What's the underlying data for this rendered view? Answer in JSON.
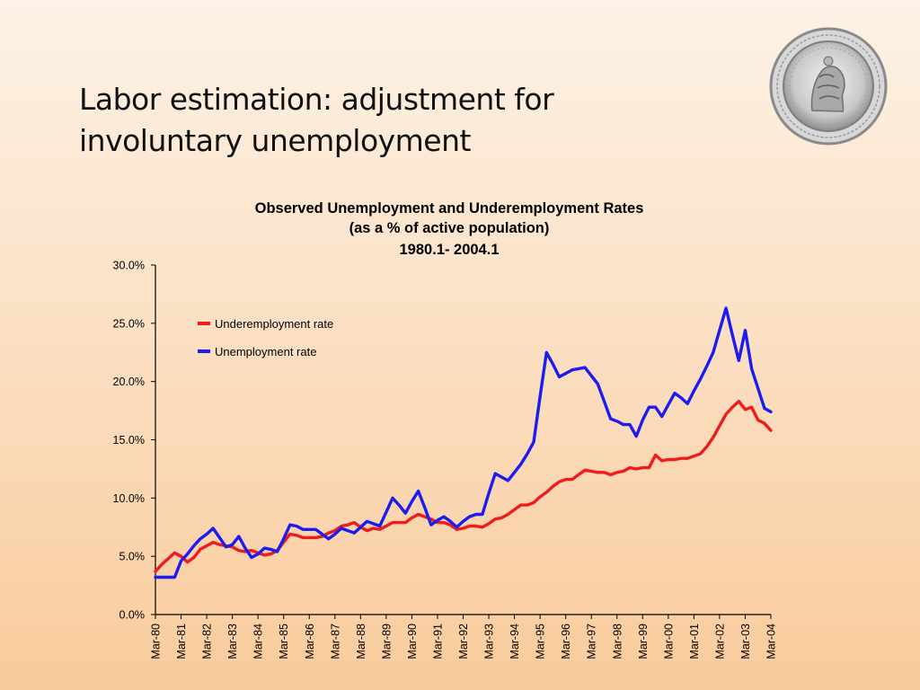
{
  "slide": {
    "title_line1": "Labor estimation: adjustment for",
    "title_line2": "involuntary unemployment"
  },
  "seal": {
    "icon": "institution-seal-icon"
  },
  "chart_data": {
    "type": "line",
    "title": [
      "Observed Unemployment and Underemployment Rates",
      "(as a % of active population)",
      "1980.1- 2004.1"
    ],
    "xlabel": "",
    "ylabel": "",
    "ylim": [
      0,
      30
    ],
    "yticks": [
      "0.0%",
      "5.0%",
      "10.0%",
      "15.0%",
      "20.0%",
      "25.0%",
      "30.0%"
    ],
    "xticks": [
      "Mar-80",
      "Mar-81",
      "Mar-82",
      "Mar-83",
      "Mar-84",
      "Mar-85",
      "Mar-86",
      "Mar-87",
      "Mar-88",
      "Mar-89",
      "Mar-90",
      "Mar-91",
      "Mar-92",
      "Mar-93",
      "Mar-94",
      "Mar-95",
      "Mar-96",
      "Mar-97",
      "Mar-98",
      "Mar-99",
      "Mar-00",
      "Mar-01",
      "Mar-02",
      "Mar-03",
      "Mar-04"
    ],
    "legend_position": "top-left",
    "grid": false,
    "series": [
      {
        "name": "Underemployment rate",
        "color": "#ee1c1c",
        "points": [
          [
            1980.0,
            3.7
          ],
          [
            1980.25,
            4.3
          ],
          [
            1980.5,
            4.8
          ],
          [
            1980.75,
            5.3
          ],
          [
            1981.0,
            5.0
          ],
          [
            1981.25,
            4.5
          ],
          [
            1981.5,
            4.9
          ],
          [
            1981.75,
            5.6
          ],
          [
            1982.0,
            5.9
          ],
          [
            1982.25,
            6.2
          ],
          [
            1982.5,
            6.0
          ],
          [
            1982.75,
            5.9
          ],
          [
            1983.0,
            5.8
          ],
          [
            1983.25,
            5.5
          ],
          [
            1983.5,
            5.4
          ],
          [
            1983.75,
            5.5
          ],
          [
            1984.0,
            5.3
          ],
          [
            1984.25,
            5.1
          ],
          [
            1984.5,
            5.2
          ],
          [
            1984.75,
            5.5
          ],
          [
            1985.0,
            6.2
          ],
          [
            1985.25,
            6.9
          ],
          [
            1985.5,
            6.8
          ],
          [
            1985.75,
            6.6
          ],
          [
            1986.0,
            6.6
          ],
          [
            1986.25,
            6.6
          ],
          [
            1986.5,
            6.7
          ],
          [
            1986.75,
            7.0
          ],
          [
            1987.0,
            7.2
          ],
          [
            1987.25,
            7.6
          ],
          [
            1987.5,
            7.7
          ],
          [
            1987.75,
            7.9
          ],
          [
            1988.0,
            7.5
          ],
          [
            1988.25,
            7.2
          ],
          [
            1988.5,
            7.4
          ],
          [
            1988.75,
            7.3
          ],
          [
            1989.0,
            7.6
          ],
          [
            1989.25,
            7.9
          ],
          [
            1989.5,
            7.9
          ],
          [
            1989.75,
            7.9
          ],
          [
            1990.0,
            8.3
          ],
          [
            1990.25,
            8.6
          ],
          [
            1990.5,
            8.4
          ],
          [
            1990.75,
            8.2
          ],
          [
            1991.0,
            7.9
          ],
          [
            1991.25,
            7.9
          ],
          [
            1991.5,
            7.7
          ],
          [
            1991.75,
            7.3
          ],
          [
            1992.0,
            7.4
          ],
          [
            1992.25,
            7.6
          ],
          [
            1992.5,
            7.6
          ],
          [
            1992.75,
            7.5
          ],
          [
            1993.0,
            7.8
          ],
          [
            1993.25,
            8.2
          ],
          [
            1993.5,
            8.3
          ],
          [
            1993.75,
            8.6
          ],
          [
            1994.0,
            9.0
          ],
          [
            1994.25,
            9.4
          ],
          [
            1994.5,
            9.4
          ],
          [
            1994.75,
            9.6
          ],
          [
            1995.0,
            10.1
          ],
          [
            1995.25,
            10.5
          ],
          [
            1995.5,
            11.0
          ],
          [
            1995.75,
            11.4
          ],
          [
            1996.0,
            11.6
          ],
          [
            1996.25,
            11.6
          ],
          [
            1996.5,
            12.0
          ],
          [
            1996.75,
            12.4
          ],
          [
            1997.0,
            12.3
          ],
          [
            1997.25,
            12.2
          ],
          [
            1997.5,
            12.2
          ],
          [
            1997.75,
            12.0
          ],
          [
            1998.0,
            12.2
          ],
          [
            1998.25,
            12.3
          ],
          [
            1998.5,
            12.6
          ],
          [
            1998.75,
            12.5
          ],
          [
            1999.0,
            12.6
          ],
          [
            1999.25,
            12.6
          ],
          [
            1999.5,
            13.7
          ],
          [
            1999.75,
            13.2
          ],
          [
            2000.0,
            13.3
          ],
          [
            2000.25,
            13.3
          ],
          [
            2000.5,
            13.4
          ],
          [
            2000.75,
            13.4
          ],
          [
            2001.0,
            13.6
          ],
          [
            2001.25,
            13.8
          ],
          [
            2001.5,
            14.4
          ],
          [
            2001.75,
            15.2
          ],
          [
            2002.0,
            16.2
          ],
          [
            2002.25,
            17.2
          ],
          [
            2002.5,
            17.8
          ],
          [
            2002.75,
            18.3
          ],
          [
            2003.0,
            17.6
          ],
          [
            2003.25,
            17.8
          ],
          [
            2003.5,
            16.7
          ],
          [
            2003.75,
            16.4
          ],
          [
            2004.0,
            15.8
          ]
        ]
      },
      {
        "name": "Unemployment rate",
        "color": "#1c1cf0",
        "points": [
          [
            1980.0,
            3.2
          ],
          [
            1980.25,
            3.2
          ],
          [
            1980.5,
            3.2
          ],
          [
            1980.75,
            3.2
          ],
          [
            1981.0,
            4.6
          ],
          [
            1981.25,
            5.2
          ],
          [
            1981.5,
            5.9
          ],
          [
            1981.75,
            6.5
          ],
          [
            1982.0,
            6.9
          ],
          [
            1982.25,
            7.4
          ],
          [
            1982.5,
            6.6
          ],
          [
            1982.75,
            5.8
          ],
          [
            1983.0,
            6.0
          ],
          [
            1983.25,
            6.7
          ],
          [
            1983.5,
            5.7
          ],
          [
            1983.75,
            4.9
          ],
          [
            1984.0,
            5.2
          ],
          [
            1984.25,
            5.7
          ],
          [
            1984.5,
            5.6
          ],
          [
            1984.75,
            5.4
          ],
          [
            1985.0,
            6.5
          ],
          [
            1985.25,
            7.7
          ],
          [
            1985.5,
            7.6
          ],
          [
            1985.75,
            7.3
          ],
          [
            1986.0,
            7.3
          ],
          [
            1986.25,
            7.3
          ],
          [
            1986.5,
            6.9
          ],
          [
            1986.75,
            6.5
          ],
          [
            1987.0,
            6.9
          ],
          [
            1987.25,
            7.4
          ],
          [
            1987.5,
            7.2
          ],
          [
            1987.75,
            7.0
          ],
          [
            1988.0,
            7.5
          ],
          [
            1988.25,
            8.0
          ],
          [
            1988.5,
            7.8
          ],
          [
            1988.75,
            7.6
          ],
          [
            1989.0,
            8.8
          ],
          [
            1989.25,
            10.0
          ],
          [
            1989.5,
            9.4
          ],
          [
            1989.75,
            8.7
          ],
          [
            1990.0,
            9.7
          ],
          [
            1990.25,
            10.6
          ],
          [
            1990.5,
            9.2
          ],
          [
            1990.75,
            7.7
          ],
          [
            1991.0,
            8.1
          ],
          [
            1991.25,
            8.4
          ],
          [
            1991.5,
            8.0
          ],
          [
            1991.75,
            7.5
          ],
          [
            1992.0,
            8.0
          ],
          [
            1992.25,
            8.4
          ],
          [
            1992.5,
            8.6
          ],
          [
            1992.75,
            8.6
          ],
          [
            1993.0,
            10.4
          ],
          [
            1993.25,
            12.1
          ],
          [
            1993.5,
            11.8
          ],
          [
            1993.75,
            11.5
          ],
          [
            1994.0,
            12.2
          ],
          [
            1994.25,
            12.9
          ],
          [
            1994.5,
            13.8
          ],
          [
            1994.75,
            14.8
          ],
          [
            1995.0,
            18.7
          ],
          [
            1995.25,
            22.5
          ],
          [
            1995.5,
            21.5
          ],
          [
            1995.75,
            20.4
          ],
          [
            1996.0,
            20.7
          ],
          [
            1996.25,
            21.0
          ],
          [
            1996.5,
            21.1
          ],
          [
            1996.75,
            21.2
          ],
          [
            1997.0,
            20.5
          ],
          [
            1997.25,
            19.8
          ],
          [
            1997.5,
            18.3
          ],
          [
            1997.75,
            16.8
          ],
          [
            1998.0,
            16.6
          ],
          [
            1998.25,
            16.3
          ],
          [
            1998.5,
            16.3
          ],
          [
            1998.75,
            15.3
          ],
          [
            1999.0,
            16.7
          ],
          [
            1999.25,
            17.8
          ],
          [
            1999.5,
            17.8
          ],
          [
            1999.75,
            17.0
          ],
          [
            2000.0,
            18.0
          ],
          [
            2000.25,
            19.0
          ],
          [
            2000.5,
            18.6
          ],
          [
            2000.75,
            18.1
          ],
          [
            2001.0,
            19.2
          ],
          [
            2001.25,
            20.2
          ],
          [
            2001.5,
            21.3
          ],
          [
            2001.75,
            22.5
          ],
          [
            2002.0,
            24.4
          ],
          [
            2002.25,
            26.3
          ],
          [
            2002.5,
            24.0
          ],
          [
            2002.75,
            21.8
          ],
          [
            2003.0,
            24.4
          ],
          [
            2003.25,
            21.1
          ],
          [
            2003.5,
            19.4
          ],
          [
            2003.75,
            17.7
          ],
          [
            2004.0,
            17.4
          ]
        ]
      }
    ]
  }
}
